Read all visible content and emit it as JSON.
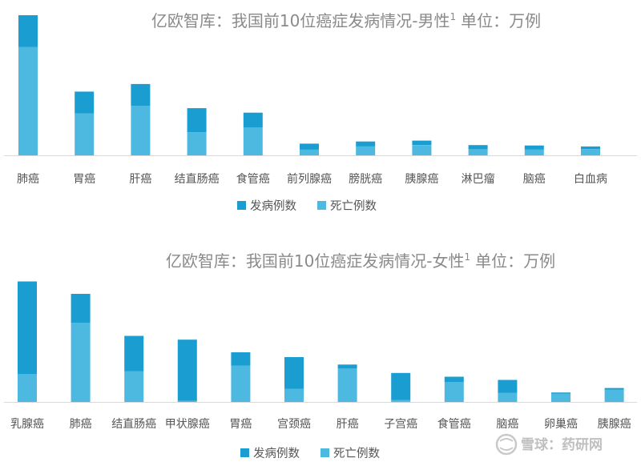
{
  "colors": {
    "incidence": "#1a9ed1",
    "death": "#4db9e1",
    "axis": "#d9d9d9",
    "title": "#8a8a8a"
  },
  "chart_data": [
    {
      "type": "bar",
      "stacked": true,
      "title": "亿欧智库：我国前10位癌症发病情况-男性",
      "title_superscript": "1",
      "title_unit": "单位：万例",
      "categories": [
        "肺癌",
        "胃癌",
        "肝癌",
        "结直肠癌",
        "食管癌",
        "前列腺癌",
        "膀胱癌",
        "胰腺癌",
        "淋巴瘤",
        "脑癌",
        "白血病"
      ],
      "series": [
        {
          "name": "发病例数",
          "values": [
            50,
            34,
            34,
            38,
            23,
            9.4,
            7.8,
            7.1,
            6.5,
            6.1,
            4.2
          ]
        },
        {
          "name": "死亡例数",
          "values": [
            170,
            66,
            78,
            36,
            44,
            9.0,
            14,
            16,
            9.6,
            9.4,
            9.8
          ]
        }
      ],
      "ylim": [
        0,
        230
      ],
      "legend": "bottom-center",
      "grid": false
    },
    {
      "type": "bar",
      "stacked": true,
      "title": "亿欧智库：我国前10位癌症发病情况-女性",
      "title_superscript": "1",
      "title_unit": "单位：万例",
      "categories": [
        "乳腺癌",
        "肺癌",
        "结直肠癌",
        "甲状腺癌",
        "胃癌",
        "宫颈癌",
        "肝癌",
        "子宫癌",
        "食管癌",
        "脑癌",
        "卵巢癌",
        "胰腺癌"
      ],
      "series": [
        {
          "name": "发病例数",
          "values": [
            231,
            72,
            88,
            153,
            33,
            79,
            9.5,
            68,
            13,
            32,
            2.6,
            3.8
          ]
        },
        {
          "name": "死亡例数",
          "values": [
            70,
            198,
            77,
            2.6,
            91,
            33,
            84,
            4.5,
            50,
            23,
            21,
            31
          ]
        }
      ],
      "ylim": [
        0,
        320
      ],
      "legend": "bottom-center",
      "grid": false
    }
  ],
  "watermark": {
    "text": "雪球：药研网",
    "logo": "snowball-logo"
  }
}
